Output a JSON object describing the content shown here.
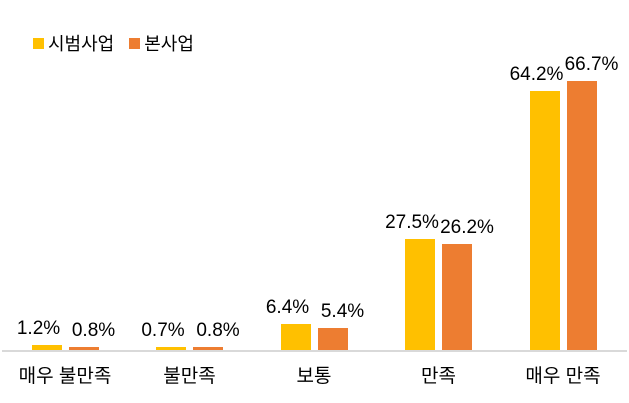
{
  "chart_data": {
    "type": "bar",
    "title": "",
    "xlabel": "",
    "ylabel": "",
    "ylim": [
      0,
      80
    ],
    "grid": false,
    "legend_position": "top-left",
    "value_label_suffix": "%",
    "axis_line_color": "#d9d9d9",
    "text_color": "#000000",
    "categories": [
      "매우 불만족",
      "불만족",
      "보통",
      "만족",
      "매우 만족"
    ],
    "series": [
      {
        "name": "시범사업",
        "color": "#FFC000",
        "values": [
          1.2,
          0.7,
          6.4,
          27.5,
          64.2
        ]
      },
      {
        "name": "본사업",
        "color": "#ED7D31",
        "values": [
          0.8,
          0.8,
          5.4,
          26.2,
          66.7
        ]
      }
    ]
  }
}
